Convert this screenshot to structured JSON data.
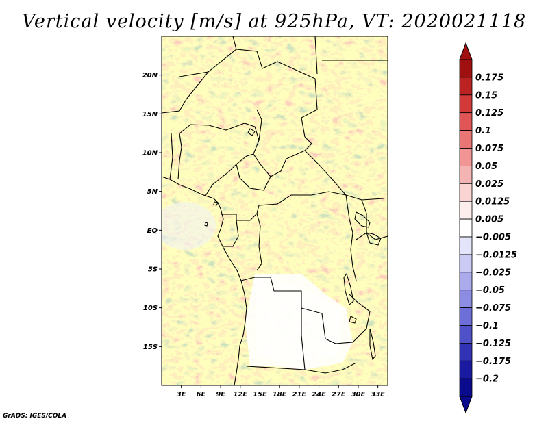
{
  "title": "Vertical velocity [m/s] at 925hPa, VT: 2020021118",
  "credit": "GrADS: IGES/COLA",
  "map": {
    "lon_range": [
      0,
      34.5
    ],
    "lat_range": [
      -20,
      25
    ],
    "lat_ticks": [
      {
        "value": 20,
        "label": "20N"
      },
      {
        "value": 15,
        "label": "15N"
      },
      {
        "value": 10,
        "label": "10N"
      },
      {
        "value": 5,
        "label": "5N"
      },
      {
        "value": 0,
        "label": "EQ"
      },
      {
        "value": -5,
        "label": "5S"
      },
      {
        "value": -10,
        "label": "10S"
      },
      {
        "value": -15,
        "label": "15S"
      }
    ],
    "lon_ticks": [
      {
        "value": 3,
        "label": "3E"
      },
      {
        "value": 6,
        "label": "6E"
      },
      {
        "value": 9,
        "label": "9E"
      },
      {
        "value": 12,
        "label": "12E"
      },
      {
        "value": 15,
        "label": "15E"
      },
      {
        "value": 18,
        "label": "18E"
      },
      {
        "value": 21,
        "label": "21E"
      },
      {
        "value": 24,
        "label": "24E"
      },
      {
        "value": 27,
        "label": "27E"
      },
      {
        "value": 30,
        "label": "30E"
      },
      {
        "value": 33,
        "label": "33E"
      }
    ]
  },
  "colorbar": {
    "labels": [
      "0.175",
      "0.15",
      "0.125",
      "0.1",
      "0.075",
      "0.05",
      "0.025",
      "0.0125",
      "0.005",
      "−0.005",
      "−0.0125",
      "−0.025",
      "−0.05",
      "−0.075",
      "−0.1",
      "−0.125",
      "−0.175",
      "−0.2"
    ],
    "colors": [
      "#a01010",
      "#bb2222",
      "#d23a3a",
      "#e05555",
      "#ea7575",
      "#f09494",
      "#f5b4b4",
      "#fad3d3",
      "#fdeeee",
      "#ffffff",
      "#e4e4fa",
      "#cacaf4",
      "#ababec",
      "#8c8ce2",
      "#6e6ed8",
      "#5050c8",
      "#3232b4",
      "#1a1aa0",
      "#0a0a8c"
    ],
    "top_arrow_color": "#a01010",
    "bottom_arrow_color": "#0a0a8c"
  },
  "colors": {
    "positive": "#e05555",
    "negative": "#6e6ed8",
    "border": "#000000"
  }
}
